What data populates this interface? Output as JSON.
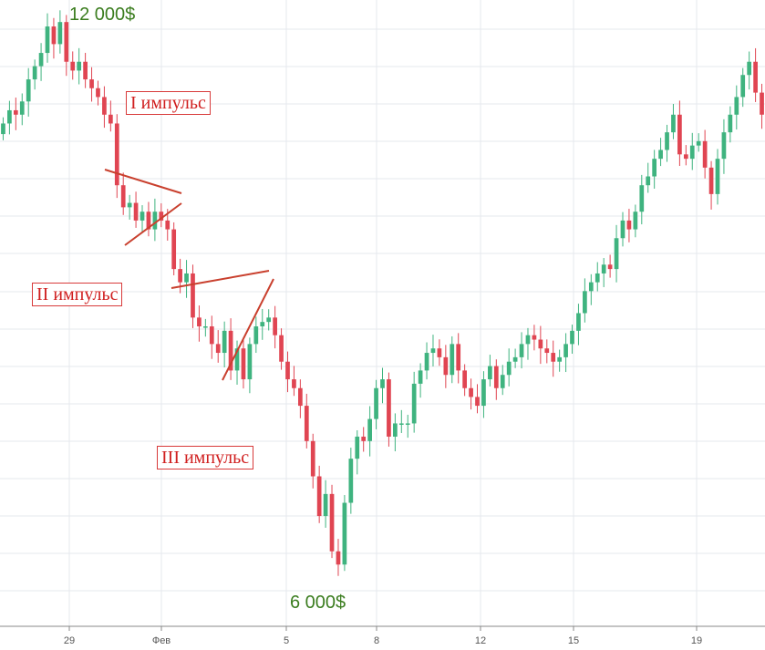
{
  "chart_data": {
    "type": "candlestick",
    "title": "",
    "xlabel": "",
    "ylabel": "",
    "x_ticks": [
      "29",
      "Фев",
      "5",
      "8",
      "12",
      "15",
      "19"
    ],
    "y_range": [
      5500,
      12600
    ],
    "grid": true,
    "colors": {
      "up": "#3fb37f",
      "down": "#e04552",
      "grid": "#e6e9ee",
      "trendline": "#c9402e",
      "label_green": "#3b7d1f",
      "label_red": "#d01f1f"
    },
    "close_series": [
      11200,
      11350,
      11300,
      11450,
      11700,
      11850,
      12000,
      12300,
      12100,
      12350,
      11900,
      11800,
      11900,
      11700,
      11600,
      11500,
      11300,
      11200,
      10500,
      10250,
      10300,
      10100,
      10200,
      10000,
      10200,
      10100,
      10000,
      9550,
      9400,
      9500,
      9000,
      8900,
      8900,
      8700,
      8600,
      8850,
      8400,
      8650,
      8300,
      8700,
      8900,
      8950,
      9000,
      8800,
      8500,
      8300,
      8200,
      8000,
      7600,
      7200,
      6750,
      7000,
      6350,
      6200,
      6900,
      7400,
      7650,
      7600,
      7850,
      8200,
      8300,
      7650,
      7800,
      7800,
      7800,
      8250,
      8400,
      8600,
      8650,
      8550,
      8350,
      8700,
      8400,
      8200,
      8100,
      8000,
      8300,
      8450,
      8200,
      8350,
      8500,
      8550,
      8700,
      8800,
      8750,
      8650,
      8600,
      8500,
      8550,
      8700,
      8850,
      9050,
      9300,
      9400,
      9500,
      9600,
      9550,
      9900,
      10100,
      10000,
      10200,
      10500,
      10600,
      10800,
      10900,
      11100,
      11300,
      10850,
      10800,
      10950,
      11000,
      10700,
      10400,
      10800,
      11100,
      11300,
      11500,
      11750,
      11900,
      11550,
      11300
    ],
    "annotations": [
      {
        "text": "I импульс"
      },
      {
        "text": "II импульс"
      },
      {
        "text": "III импульс"
      }
    ],
    "price_labels": [
      {
        "text": "12 000$",
        "value": 12000
      },
      {
        "text": "6 000$",
        "value": 6000
      }
    ]
  }
}
